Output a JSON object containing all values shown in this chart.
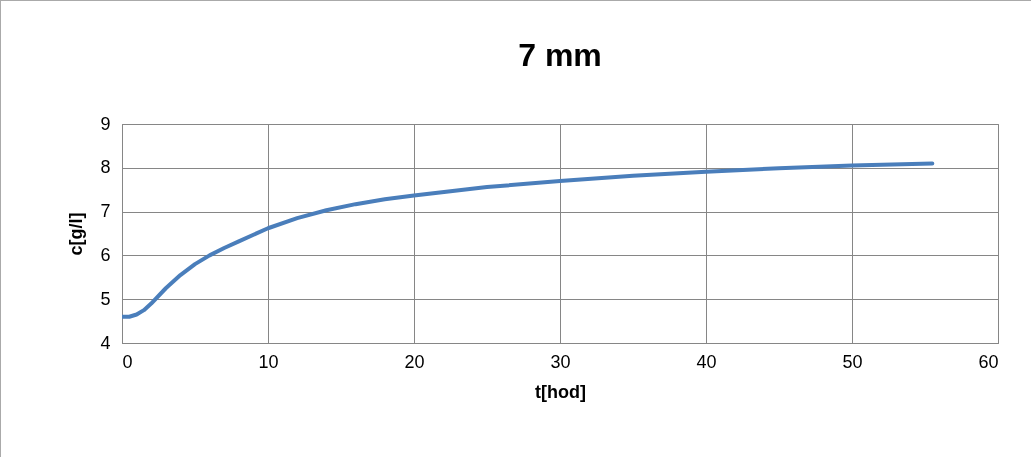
{
  "chart_data": {
    "type": "line",
    "title": "7 mm",
    "xlabel": "t[hod]",
    "ylabel": "c[g/l]",
    "xlim": [
      0,
      60
    ],
    "xticks": [
      0,
      10,
      20,
      30,
      40,
      50,
      60
    ],
    "ylim": [
      4,
      9
    ],
    "yticks": [
      4,
      5,
      6,
      7,
      8,
      9
    ],
    "grid": true,
    "marker": "none",
    "line_style": "solid",
    "series": [
      {
        "color": "#4a7ebb",
        "x": [
          0,
          0.5,
          1,
          1.5,
          2,
          3,
          4,
          5,
          6,
          7,
          8,
          10,
          12,
          14,
          16,
          18,
          20,
          25,
          30,
          35,
          40,
          45,
          50,
          55.5
        ],
        "values": [
          4.6,
          4.6,
          4.65,
          4.75,
          4.9,
          5.25,
          5.55,
          5.8,
          6.0,
          6.17,
          6.32,
          6.62,
          6.85,
          7.03,
          7.17,
          7.28,
          7.37,
          7.56,
          7.7,
          7.82,
          7.91,
          7.99,
          8.05,
          8.1
        ]
      }
    ]
  }
}
